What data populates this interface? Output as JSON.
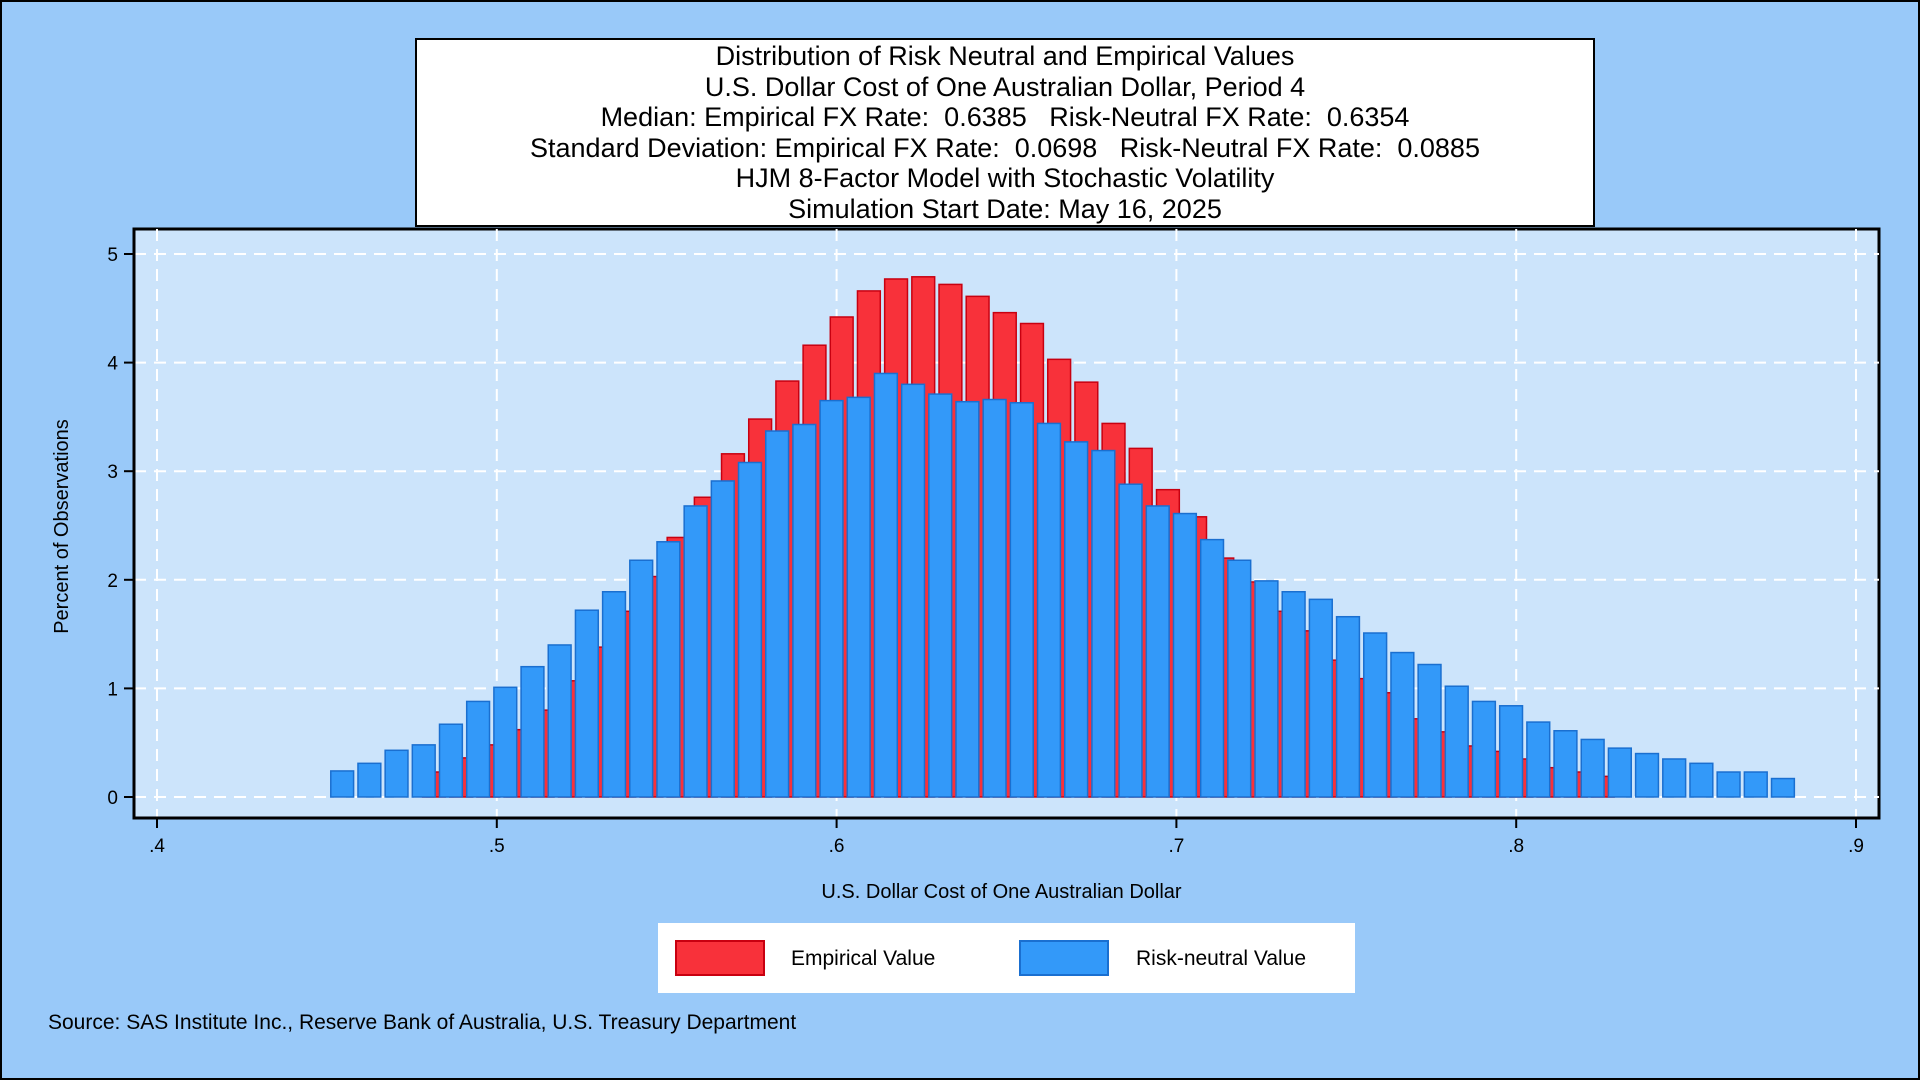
{
  "title_lines": [
    "Distribution of Risk Neutral and Empirical Values",
    "U.S. Dollar Cost of One Australian Dollar, Period 4",
    "Median: Empirical FX Rate:  0.6385   Risk-Neutral FX Rate:  0.6354",
    "Standard Deviation: Empirical FX Rate:  0.0698   Risk-Neutral FX Rate:  0.0885",
    "HJM 8-Factor Model with Stochastic Volatility",
    "Simulation Start Date: May 16, 2025"
  ],
  "source": "Source: SAS Institute Inc., Reserve Bank of Australia, U.S. Treasury Department",
  "colors": {
    "background": "#99c9f9",
    "plot_area": "#cce4fb",
    "empirical": "#f8313a",
    "empirical_edge": "#c80010",
    "risk_neutral": "#3399f9",
    "risk_neutral_edge": "#1a6fd0",
    "grid": "#ffffff"
  },
  "chart_data": {
    "type": "bar",
    "xlabel": "U.S. Dollar Cost of One Australian Dollar",
    "ylabel": "Percent of Observations",
    "xlim": [
      0.4,
      0.9
    ],
    "ylim": [
      0,
      5
    ],
    "x_ticks": [
      {
        "value": 0.4,
        "label": ".4"
      },
      {
        "value": 0.5,
        "label": ".5"
      },
      {
        "value": 0.6,
        "label": ".6"
      },
      {
        "value": 0.7,
        "label": ".7"
      },
      {
        "value": 0.8,
        "label": ".8"
      },
      {
        "value": 0.9,
        "label": ".9"
      }
    ],
    "y_ticks": [
      {
        "value": 0,
        "label": "0"
      },
      {
        "value": 1,
        "label": "1"
      },
      {
        "value": 2,
        "label": "2"
      },
      {
        "value": 3,
        "label": "3"
      },
      {
        "value": 4,
        "label": "4"
      },
      {
        "value": 5,
        "label": "5"
      }
    ],
    "grid": true,
    "legend_position": "bottom",
    "series": [
      {
        "name": "Empirical Value",
        "x": [
          0.4815,
          0.4895,
          0.4975,
          0.5055,
          0.5135,
          0.5215,
          0.5295,
          0.5375,
          0.5455,
          0.5535,
          0.5615,
          0.5695,
          0.5775,
          0.5855,
          0.5935,
          0.6015,
          0.6095,
          0.6175,
          0.6255,
          0.6335,
          0.6415,
          0.6495,
          0.6575,
          0.6655,
          0.6735,
          0.6815,
          0.6895,
          0.6975,
          0.7055,
          0.7135,
          0.7215,
          0.7295,
          0.7375,
          0.7455,
          0.7535,
          0.7615,
          0.7695,
          0.7775,
          0.7855,
          0.7935,
          0.8015,
          0.8095,
          0.8175,
          0.8255,
          0.8335
        ],
        "values": [
          0.23,
          0.36,
          0.48,
          0.62,
          0.8,
          1.07,
          1.38,
          1.71,
          2.03,
          2.39,
          2.76,
          3.16,
          3.48,
          3.83,
          4.16,
          4.42,
          4.66,
          4.77,
          4.79,
          4.72,
          4.61,
          4.46,
          4.36,
          4.03,
          3.82,
          3.44,
          3.21,
          2.83,
          2.58,
          2.2,
          1.98,
          1.71,
          1.53,
          1.26,
          1.09,
          0.96,
          0.72,
          0.6,
          0.47,
          0.42,
          0.35,
          0.27,
          0.23,
          0.19,
          0.0
        ]
      },
      {
        "name": "Risk-neutral Value",
        "x": [
          0.4545,
          0.4625,
          0.4705,
          0.4785,
          0.4865,
          0.4945,
          0.5025,
          0.5105,
          0.5185,
          0.5265,
          0.5345,
          0.5425,
          0.5505,
          0.5585,
          0.5665,
          0.5745,
          0.5825,
          0.5905,
          0.5985,
          0.6065,
          0.6145,
          0.6225,
          0.6305,
          0.6385,
          0.6465,
          0.6545,
          0.6625,
          0.6705,
          0.6785,
          0.6865,
          0.6945,
          0.7025,
          0.7105,
          0.7185,
          0.7265,
          0.7345,
          0.7425,
          0.7505,
          0.7585,
          0.7665,
          0.7745,
          0.7825,
          0.7905,
          0.7985,
          0.8065,
          0.8145,
          0.8225,
          0.8305,
          0.8385,
          0.8465,
          0.8545,
          0.8625,
          0.8705,
          0.8785
        ],
        "values": [
          0.24,
          0.31,
          0.43,
          0.48,
          0.67,
          0.88,
          1.01,
          1.2,
          1.4,
          1.72,
          1.89,
          2.18,
          2.35,
          2.68,
          2.91,
          3.08,
          3.37,
          3.43,
          3.65,
          3.68,
          3.9,
          3.8,
          3.71,
          3.64,
          3.66,
          3.63,
          3.44,
          3.27,
          3.19,
          2.88,
          2.68,
          2.61,
          2.37,
          2.18,
          1.99,
          1.89,
          1.82,
          1.66,
          1.51,
          1.33,
          1.22,
          1.02,
          0.88,
          0.84,
          0.69,
          0.61,
          0.53,
          0.45,
          0.4,
          0.35,
          0.31,
          0.23,
          0.23,
          0.17
        ]
      }
    ]
  }
}
